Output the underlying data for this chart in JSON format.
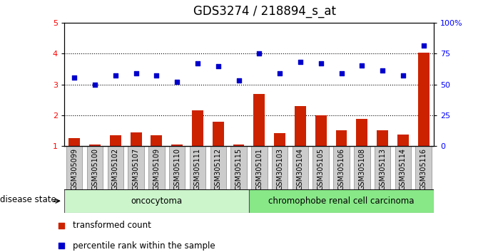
{
  "title": "GDS3274 / 218894_s_at",
  "samples": [
    "GSM305099",
    "GSM305100",
    "GSM305102",
    "GSM305107",
    "GSM305109",
    "GSM305110",
    "GSM305111",
    "GSM305112",
    "GSM305115",
    "GSM305101",
    "GSM305103",
    "GSM305104",
    "GSM305105",
    "GSM305106",
    "GSM305108",
    "GSM305113",
    "GSM305114",
    "GSM305116"
  ],
  "transformed_count": [
    1.25,
    1.05,
    1.35,
    1.45,
    1.35,
    1.05,
    2.15,
    1.78,
    1.05,
    2.68,
    1.42,
    2.3,
    2.0,
    1.52,
    1.88,
    1.52,
    1.38,
    4.02
  ],
  "percentile_rank": [
    3.22,
    3.0,
    3.28,
    3.35,
    3.28,
    3.08,
    3.68,
    3.58,
    3.12,
    4.01,
    3.35,
    3.72,
    3.68,
    3.35,
    3.62,
    3.45,
    3.28,
    4.25
  ],
  "groups": [
    {
      "label": "oncocytoma",
      "start": 0,
      "end": 9,
      "color": "#ccf5cc"
    },
    {
      "label": "chromophobe renal cell carcinoma",
      "start": 9,
      "end": 18,
      "color": "#88e888"
    }
  ],
  "disease_state_label": "disease state",
  "ylim_left": [
    1,
    5
  ],
  "yticks_left": [
    1,
    2,
    3,
    4,
    5
  ],
  "ytick_labels_right": [
    "0",
    "25",
    "50",
    "75",
    "100%"
  ],
  "bar_color": "#cc2200",
  "dot_color": "#0000cc",
  "background_color": "#ffffff",
  "title_fontsize": 12,
  "tick_fontsize": 7,
  "label_fontsize": 8.5
}
